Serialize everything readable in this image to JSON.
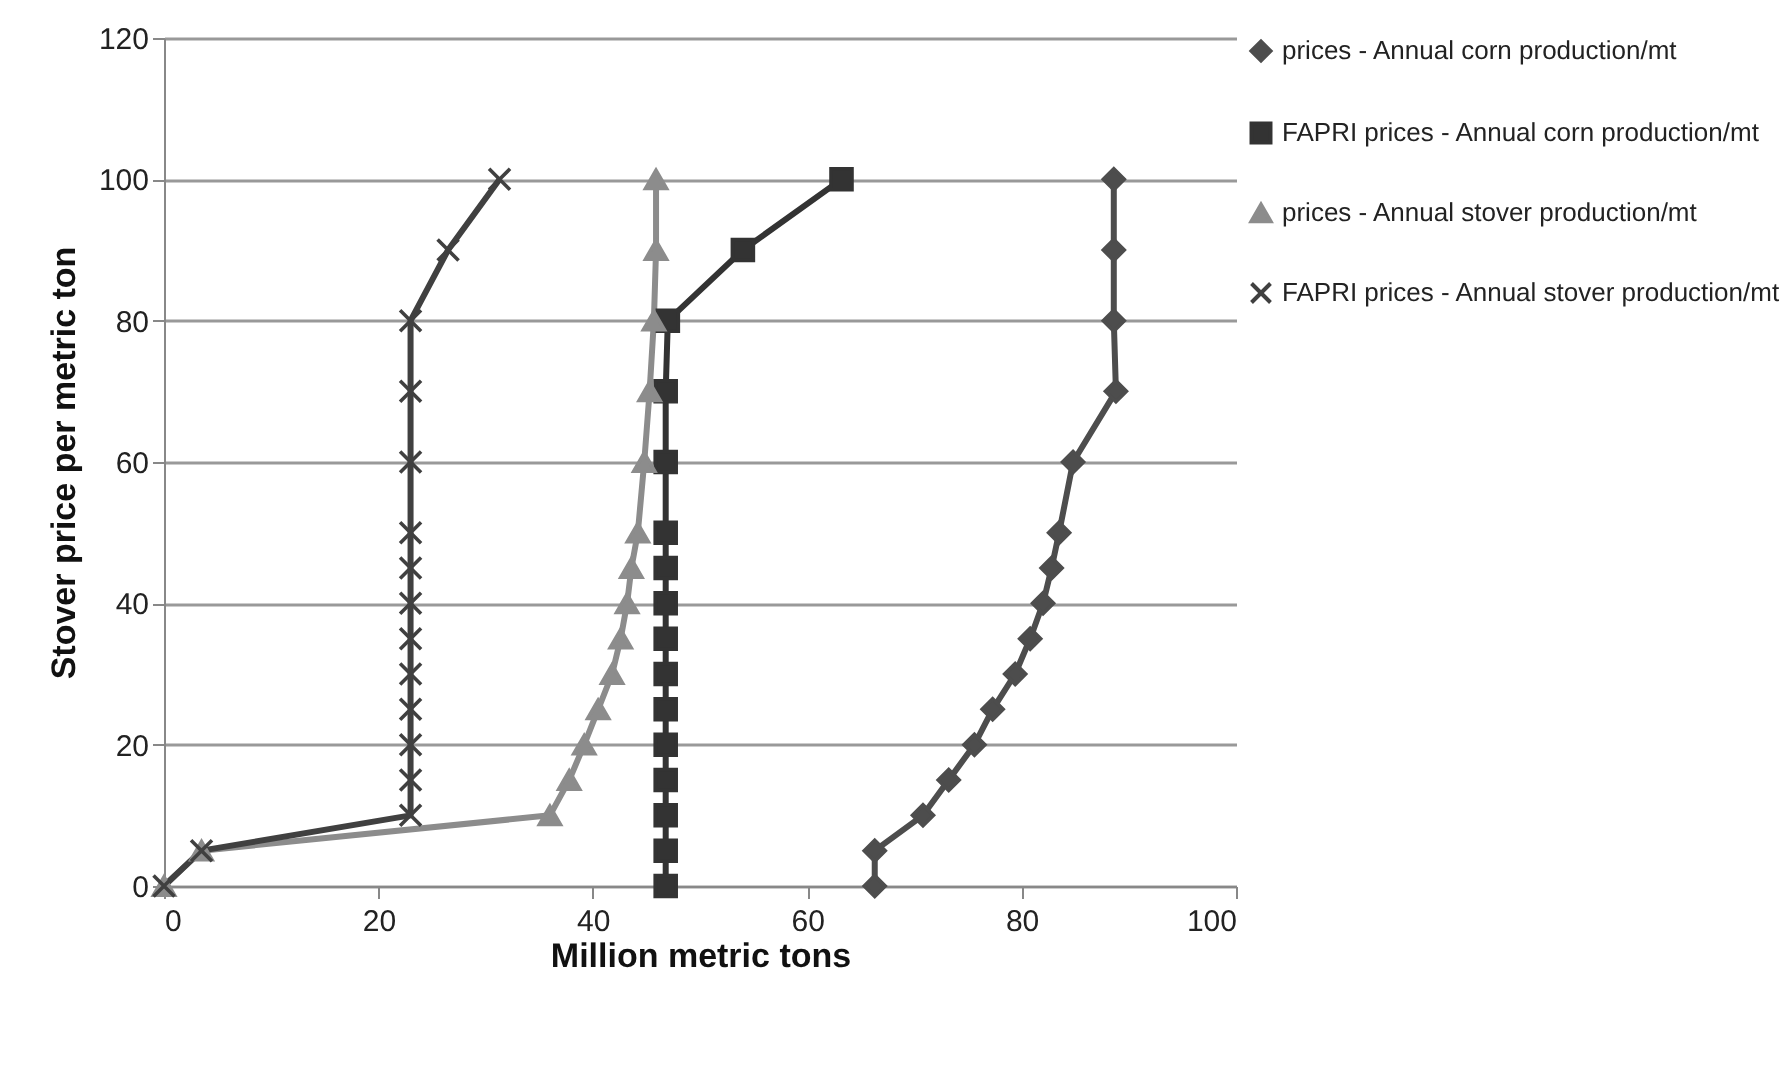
{
  "chart_data": {
    "type": "line",
    "xlabel": "Million metric tons",
    "ylabel": "Stover price per metric ton",
    "xlim": [
      0,
      100
    ],
    "xticks": [
      0,
      20,
      40,
      60,
      80,
      100
    ],
    "ylim": [
      0,
      120
    ],
    "yticks": [
      0,
      20,
      40,
      60,
      80,
      100,
      120
    ],
    "grid": "y",
    "legend": "right",
    "line_style": "solid",
    "series": [
      {
        "name": "prices - Annual corn production/mt",
        "color": "#4d4d4d",
        "marker": "diamond",
        "x": [
          66.3,
          66.3,
          70.8,
          73.2,
          75.6,
          77.3,
          79.4,
          80.8,
          82,
          82.8,
          83.5,
          84.8,
          88.8,
          88.6,
          88.6,
          88.6
        ],
        "values": [
          0,
          5,
          10,
          15,
          20,
          25,
          30,
          35,
          40,
          45,
          50,
          60,
          70,
          80,
          90,
          100
        ]
      },
      {
        "name": "FAPRI prices - Annual corn production/mt",
        "color": "#333333",
        "marker": "square",
        "x": [
          46.8,
          46.8,
          46.8,
          46.8,
          46.8,
          46.8,
          46.8,
          46.8,
          46.8,
          46.8,
          46.8,
          46.8,
          46.8,
          47,
          54,
          63.2
        ],
        "values": [
          0,
          5,
          10,
          15,
          20,
          25,
          30,
          35,
          40,
          45,
          50,
          60,
          70,
          80,
          90,
          100
        ]
      },
      {
        "name": "prices - Annual stover production/mt",
        "color": "#8c8c8c",
        "marker": "triangle",
        "x": [
          0,
          3.5,
          36,
          37.8,
          39.2,
          40.5,
          41.8,
          42.6,
          43.2,
          43.6,
          44.2,
          44.8,
          45.3,
          45.7,
          45.9,
          45.9
        ],
        "values": [
          0,
          5,
          10,
          15,
          20,
          25,
          30,
          35,
          40,
          45,
          50,
          60,
          70,
          80,
          90,
          100
        ]
      },
      {
        "name": "FAPRI prices - Annual stover production/mt",
        "color": "#404040",
        "marker": "cross",
        "x": [
          0,
          3.5,
          23,
          23,
          23,
          23,
          23,
          23,
          23,
          23,
          23,
          23,
          23,
          23,
          26.5,
          31.3
        ],
        "values": [
          0,
          5,
          10,
          15,
          20,
          25,
          30,
          35,
          40,
          45,
          50,
          60,
          70,
          80,
          90,
          100
        ]
      }
    ]
  }
}
